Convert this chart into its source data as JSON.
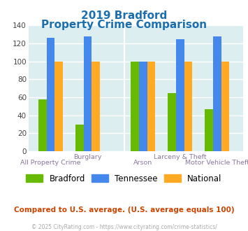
{
  "title_line1": "2019 Bradford",
  "title_line2": "Property Crime Comparison",
  "title_color": "#1a6faf",
  "bradford_values": [
    58,
    30,
    100,
    65,
    47
  ],
  "tennessee_values": [
    126,
    128,
    100,
    125,
    128
  ],
  "national_values": [
    100,
    100,
    100,
    100,
    100
  ],
  "bradford_color": "#66bb00",
  "tennessee_color": "#4488ee",
  "national_color": "#ffaa22",
  "ylim": [
    0,
    140
  ],
  "yticks": [
    0,
    20,
    40,
    60,
    80,
    100,
    120,
    140
  ],
  "bar_width": 0.22,
  "plot_bg_color": "#ddeef0",
  "fig_bg_color": "#ffffff",
  "grid_color": "#ffffff",
  "legend_labels": [
    "Bradford",
    "Tennessee",
    "National"
  ],
  "footer_text": "Compared to U.S. average. (U.S. average equals 100)",
  "footer_color": "#cc4400",
  "copyright_text": "© 2025 CityRating.com - https://www.cityrating.com/crime-statistics/",
  "copyright_color": "#aaaaaa",
  "xlabel_color": "#887799",
  "group_positions": [
    0.5,
    1.5,
    3.0,
    4.0,
    5.0
  ]
}
